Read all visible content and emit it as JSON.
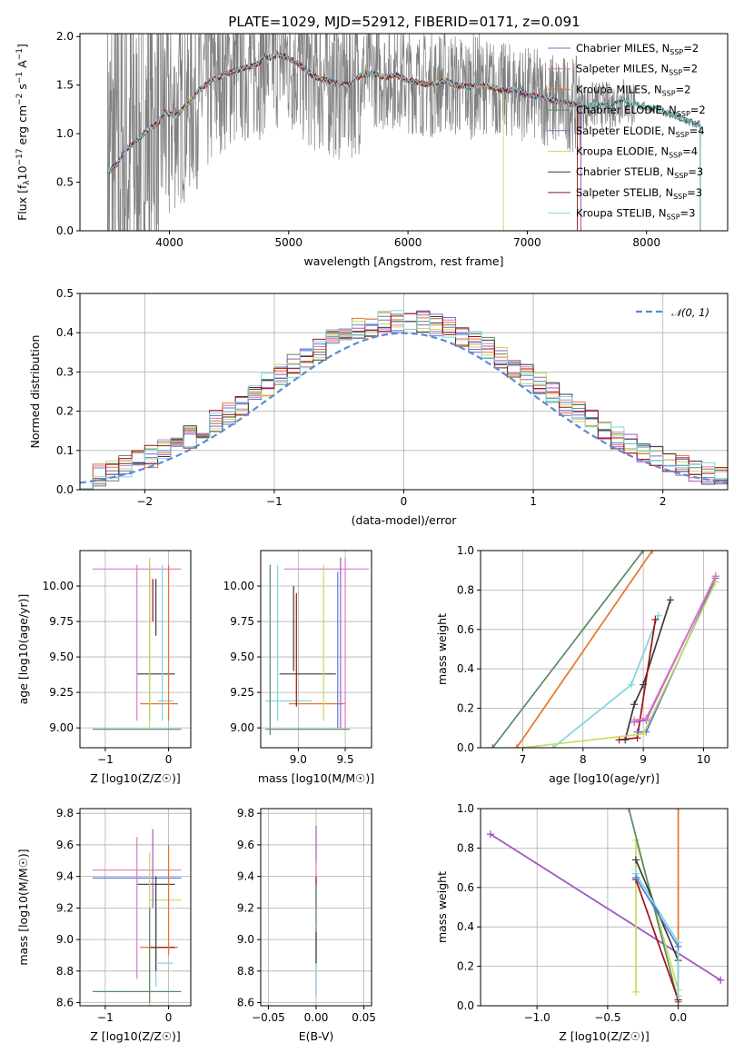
{
  "title": "PLATE=1029, MJD=52912, FIBERID=0171, z=0.091",
  "colors": {
    "data_gray": "#808080",
    "series": [
      "#5b7bd5",
      "#e377c2",
      "#e8742a",
      "#5a8a68",
      "#9b59c9",
      "#c8db5a",
      "#3a3a3a",
      "#a01015",
      "#7dd6de"
    ],
    "gaussian": "#5b8bd4"
  },
  "chart_data": [
    {
      "type": "line",
      "name": "spectrum",
      "xlabel": "wavelength [Angstrom, rest frame]",
      "ylabel": "Flux [f_λ 10^-17 erg cm^-2 s^-1 A^-1]",
      "xlim": [
        3250,
        8680
      ],
      "ylim": [
        0,
        2.03
      ],
      "xticks": [
        4000,
        5000,
        6000,
        7000,
        8000
      ],
      "yticks": [
        0.0,
        0.5,
        1.0,
        1.5,
        2.0
      ],
      "xtick_labels": [
        "4000",
        "5000",
        "6000",
        "7000",
        "8000"
      ],
      "ytick_labels": [
        "0.0",
        "0.5",
        "1.0",
        "1.5",
        "2.0"
      ],
      "grid": false,
      "legend_position": "top-right",
      "model_curve": {
        "x": [
          3500,
          3560,
          3620,
          3680,
          3750,
          3820,
          3900,
          3960,
          4050,
          4150,
          4250,
          4350,
          4450,
          4550,
          4650,
          4750,
          4800,
          4850,
          4900,
          5000,
          5100,
          5200,
          5300,
          5400,
          5500,
          5600,
          5700,
          5800,
          5900,
          6000,
          6100,
          6200,
          6300,
          6400,
          6500,
          6600,
          6700,
          6800,
          6900,
          7000,
          7100,
          7200,
          7300,
          7400,
          7500,
          7600,
          7700,
          7800,
          7900,
          8000,
          8100,
          8200,
          8300,
          8400
        ],
        "y": [
          0.62,
          0.68,
          0.82,
          0.88,
          0.95,
          1.05,
          1.1,
          1.22,
          1.18,
          1.3,
          1.45,
          1.55,
          1.6,
          1.65,
          1.68,
          1.72,
          1.8,
          1.78,
          1.82,
          1.78,
          1.7,
          1.6,
          1.55,
          1.52,
          1.5,
          1.6,
          1.62,
          1.58,
          1.6,
          1.55,
          1.52,
          1.5,
          1.55,
          1.5,
          1.48,
          1.5,
          1.48,
          1.44,
          1.45,
          1.4,
          1.38,
          1.35,
          1.32,
          1.3,
          1.28,
          1.3,
          1.28,
          1.35,
          1.3,
          1.27,
          1.25,
          1.2,
          1.15,
          1.1
        ]
      },
      "series": [
        {
          "name": "Chabrier MILES",
          "nssp": "2"
        },
        {
          "name": "Salpeter MILES",
          "nssp": "2"
        },
        {
          "name": "Kroupa MILES",
          "nssp": "2"
        },
        {
          "name": "Chabrier ELODIE",
          "nssp": "2"
        },
        {
          "name": "Salpeter ELODIE",
          "nssp": "4"
        },
        {
          "name": "Kroupa ELODIE",
          "nssp": "4"
        },
        {
          "name": "Chabrier STELIB",
          "nssp": "3"
        },
        {
          "name": "Salpeter STELIB",
          "nssp": "3"
        },
        {
          "name": "Kroupa STELIB",
          "nssp": "3"
        }
      ]
    },
    {
      "type": "histogram",
      "name": "residuals",
      "xlabel": "(data-model)/error",
      "ylabel": "Normed distribution",
      "xlim": [
        -2.5,
        2.5
      ],
      "ylim": [
        0,
        0.5
      ],
      "xticks": [
        -2,
        -1,
        0,
        1,
        2
      ],
      "yticks": [
        0.0,
        0.1,
        0.2,
        0.3,
        0.4,
        0.5
      ],
      "xtick_labels": [
        "−2",
        "−1",
        "0",
        "1",
        "2"
      ],
      "ytick_labels": [
        "0.0",
        "0.1",
        "0.2",
        "0.3",
        "0.4",
        "0.5"
      ],
      "grid": true,
      "legend_position": "top-right",
      "reference": {
        "name": "𝒩(0, 1)",
        "mu": 0,
        "sigma": 1
      },
      "bin_width": 0.1,
      "bin_start": -2.5
    },
    {
      "type": "errorbar",
      "name": "age-vs-Z",
      "xlabel": "Z [log10(Z/Z☉)]",
      "ylabel": "age [log10(age/yr)]",
      "xlim": [
        -1.4,
        0.35
      ],
      "ylim": [
        8.86,
        10.25
      ],
      "xticks": [
        -1,
        0
      ],
      "yticks": [
        9.0,
        9.25,
        9.5,
        9.75,
        10.0
      ],
      "xtick_labels": [
        "−1",
        "0"
      ],
      "ytick_labels": [
        "9.00",
        "9.25",
        "9.50",
        "9.75",
        "10.00"
      ],
      "grid": true,
      "points": [
        {
          "c": 3,
          "x": -0.5,
          "xe": 0.7,
          "y": 8.99,
          "ye": 0.0
        },
        {
          "c": 1,
          "x": -0.5,
          "xe": 0.7,
          "y": 10.12,
          "ye": 0.0
        },
        {
          "c": 2,
          "x": -0.15,
          "xe": 0.3,
          "y": 9.17,
          "ye": 0.0
        },
        {
          "c": 6,
          "x": -0.2,
          "xe": 0.3,
          "y": 9.38,
          "ye": 0.0
        },
        {
          "c": 8,
          "x": -0.05,
          "xe": 0.12,
          "y": 9.19,
          "ye": 0.0
        },
        {
          "c": 1,
          "x": -0.5,
          "xe": 0.0,
          "y": 9.6,
          "ye": 0.55
        },
        {
          "c": 0,
          "x": -0.3,
          "xe": 0.0,
          "y": 9.6,
          "ye": 0.55
        },
        {
          "c": 5,
          "x": -0.3,
          "xe": 0.0,
          "y": 9.6,
          "ye": 0.6
        },
        {
          "c": 6,
          "x": -0.2,
          "xe": 0.0,
          "y": 9.85,
          "ye": 0.2
        },
        {
          "c": 7,
          "x": -0.25,
          "xe": 0.0,
          "y": 9.9,
          "ye": 0.15
        },
        {
          "c": 2,
          "x": 0.0,
          "xe": 0.0,
          "y": 9.6,
          "ye": 0.55
        },
        {
          "c": 8,
          "x": -0.1,
          "xe": 0.0,
          "y": 9.6,
          "ye": 0.55
        }
      ]
    },
    {
      "type": "errorbar",
      "name": "age-vs-mass",
      "xlabel": "mass [log10(M/M☉)]",
      "ylabel": "",
      "xlim": [
        8.6,
        9.78
      ],
      "ylim": [
        8.86,
        10.25
      ],
      "xticks": [
        9.0,
        9.5
      ],
      "yticks": [
        9.0,
        9.25,
        9.5,
        9.75,
        10.0
      ],
      "xtick_labels": [
        "9.0",
        "9.5"
      ],
      "ytick_labels": [
        "9.00",
        "9.25",
        "9.50",
        "9.75",
        "10.00"
      ],
      "grid": true
    },
    {
      "type": "line",
      "name": "mass-weight-vs-age",
      "xlabel": "age  [log10(age/yr)]",
      "ylabel": "mass weight",
      "xlim": [
        6.3,
        10.4
      ],
      "ylim": [
        0,
        1.0
      ],
      "xticks": [
        7,
        8,
        9,
        10
      ],
      "yticks": [
        0.0,
        0.2,
        0.4,
        0.6,
        0.8,
        1.0
      ],
      "xtick_labels": [
        "7",
        "8",
        "9",
        "10"
      ],
      "ytick_labels": [
        "0.0",
        "0.2",
        "0.4",
        "0.6",
        "0.8",
        "1.0"
      ],
      "grid": true,
      "lines": [
        {
          "c": 3,
          "x": [
            6.5,
            9.0
          ],
          "y": [
            0.0,
            1.0
          ]
        },
        {
          "c": 2,
          "x": [
            6.9,
            9.15
          ],
          "y": [
            0.0,
            1.0
          ]
        },
        {
          "c": 8,
          "x": [
            7.5,
            8.8,
            9.25
          ],
          "y": [
            0.0,
            0.32,
            0.67
          ]
        },
        {
          "c": 6,
          "x": [
            8.7,
            8.85,
            9.0,
            9.45
          ],
          "y": [
            0.04,
            0.22,
            0.32,
            0.75
          ]
        },
        {
          "c": 7,
          "x": [
            8.6,
            8.9,
            9.2
          ],
          "y": [
            0.04,
            0.05,
            0.65
          ]
        },
        {
          "c": 0,
          "x": [
            8.9,
            9.05,
            10.2
          ],
          "y": [
            0.08,
            0.08,
            0.86
          ]
        },
        {
          "c": 5,
          "x": [
            7.0,
            9.0,
            10.2
          ],
          "y": [
            0.0,
            0.07,
            0.84
          ]
        },
        {
          "c": 4,
          "x": [
            8.85,
            9.05,
            10.2
          ],
          "y": [
            0.13,
            0.14,
            0.87
          ]
        },
        {
          "c": 1,
          "x": [
            8.85,
            9.05,
            10.2
          ],
          "y": [
            0.14,
            0.15,
            0.87
          ]
        }
      ]
    },
    {
      "type": "errorbar",
      "name": "mass-vs-Z",
      "xlabel": "Z [log10(Z/Z☉)]",
      "ylabel": "mass [log10(M/M☉)]",
      "xlim": [
        -1.4,
        0.35
      ],
      "ylim": [
        8.58,
        9.83
      ],
      "xticks": [
        -1,
        0
      ],
      "yticks": [
        8.6,
        8.8,
        9.0,
        9.2,
        9.4,
        9.6,
        9.8
      ],
      "xtick_labels": [
        "−1",
        "0"
      ],
      "ytick_labels": [
        "8.6",
        "8.8",
        "9.0",
        "9.2",
        "9.4",
        "9.6",
        "9.8"
      ],
      "grid": true
    },
    {
      "type": "errorbar",
      "name": "mass-vs-EBV",
      "xlabel": "E(B-V)",
      "ylabel": "",
      "xlim": [
        -0.058,
        0.058
      ],
      "ylim": [
        8.58,
        9.83
      ],
      "xticks": [
        -0.05,
        0.0,
        0.05
      ],
      "yticks": [
        8.6,
        8.8,
        9.0,
        9.2,
        9.4,
        9.6,
        9.8
      ],
      "xtick_labels": [
        "−0.05",
        "0.00",
        "0.05"
      ],
      "ytick_labels": [
        "8.6",
        "8.8",
        "9.0",
        "9.2",
        "9.4",
        "9.6",
        "9.8"
      ],
      "grid": true
    },
    {
      "type": "line",
      "name": "mass-weight-vs-Z",
      "xlabel": "Z [log10(Z/Z☉)]",
      "ylabel": "mass weight",
      "xlim": [
        -1.4,
        0.35
      ],
      "ylim": [
        0,
        1.0
      ],
      "xticks": [
        -1.0,
        -0.5,
        0.0
      ],
      "yticks": [
        0.0,
        0.2,
        0.4,
        0.6,
        0.8,
        1.0
      ],
      "xtick_labels": [
        "−1.0",
        "−0.5",
        "0.0"
      ],
      "ytick_labels": [
        "0.0",
        "0.2",
        "0.4",
        "0.6",
        "0.8",
        "1.0"
      ],
      "grid": true,
      "lines": [
        {
          "c": 1,
          "x": [
            -1.33,
            0.3
          ],
          "y": [
            0.87,
            0.13
          ]
        },
        {
          "c": 4,
          "x": [
            -1.33,
            0.3
          ],
          "y": [
            0.87,
            0.13
          ]
        },
        {
          "c": 2,
          "x": [
            0.0,
            0.0
          ],
          "y": [
            0.0,
            1.0
          ]
        },
        {
          "c": 5,
          "x": [
            -0.3,
            -0.3,
            0.0
          ],
          "y": [
            0.07,
            0.84,
            0.08
          ]
        },
        {
          "c": 3,
          "x": [
            -0.35,
            0.0
          ],
          "y": [
            1.0,
            0.02
          ]
        },
        {
          "c": 6,
          "x": [
            -0.3,
            0.0
          ],
          "y": [
            0.74,
            0.23
          ]
        },
        {
          "c": 7,
          "x": [
            -0.3,
            0.0
          ],
          "y": [
            0.64,
            0.03
          ]
        },
        {
          "c": 8,
          "x": [
            -0.3,
            0.0,
            0.0
          ],
          "y": [
            0.67,
            0.32,
            0.05
          ]
        },
        {
          "c": 0,
          "x": [
            -0.3,
            0.0
          ],
          "y": [
            0.65,
            0.3
          ]
        }
      ]
    }
  ]
}
